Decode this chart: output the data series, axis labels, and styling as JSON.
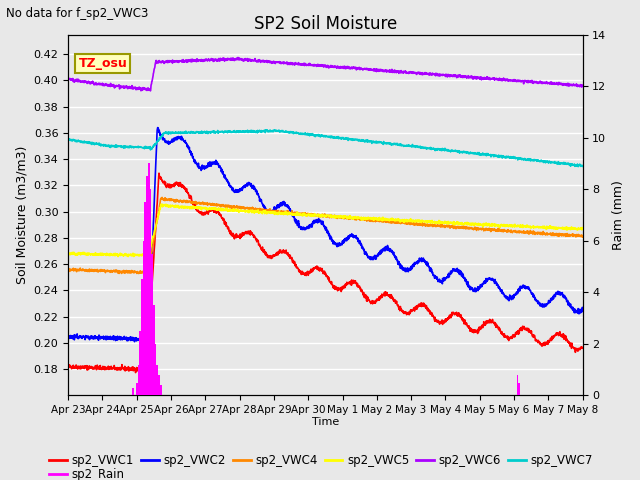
{
  "title": "SP2 Soil Moisture",
  "subtitle": "No data for f_sp2_VWC3",
  "ylabel_left": "Soil Moisture (m3/m3)",
  "ylabel_right": "Raim (mm)",
  "xlabel": "Time",
  "tz_label": "TZ_osu",
  "ylim_left": [
    0.16,
    0.435
  ],
  "ylim_right": [
    0,
    14
  ],
  "yticks_left": [
    0.18,
    0.2,
    0.22,
    0.24,
    0.26,
    0.28,
    0.3,
    0.32,
    0.34,
    0.36,
    0.38,
    0.4,
    0.42
  ],
  "yticks_right": [
    0,
    2,
    4,
    6,
    8,
    10,
    12,
    14
  ],
  "line_colors": {
    "VWC1": "#ff0000",
    "VWC2": "#0000ff",
    "VWC4": "#ff8800",
    "VWC5": "#ffff00",
    "VWC6": "#aa00ff",
    "VWC7": "#00cccc",
    "Rain": "#ff00ff"
  },
  "background_color": "#e8e8e8",
  "n_points": 2000
}
